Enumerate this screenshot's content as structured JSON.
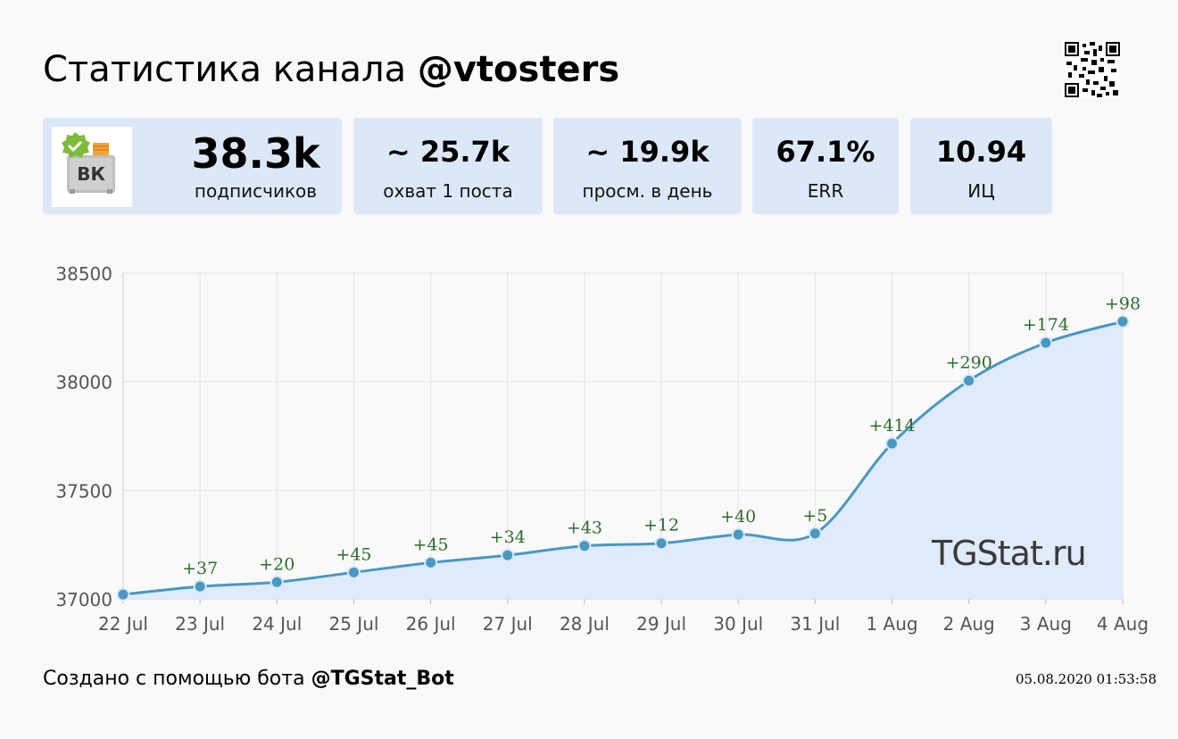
{
  "header": {
    "title_prefix": "Статистика канала",
    "channel": "@vtosters"
  },
  "stats": {
    "subscribers": {
      "value": "38.3k",
      "label": "подписчиков"
    },
    "reach": {
      "value": "~ 25.7k",
      "label": "охват 1 поста"
    },
    "daily_views": {
      "value": "~ 19.9k",
      "label": "просм. в день"
    },
    "err": {
      "value": "67.1%",
      "label": "ERR"
    },
    "ci": {
      "value": "10.94",
      "label": "ИЦ"
    }
  },
  "avatar": {
    "text": "ВК"
  },
  "watermark": "TGStat.ru",
  "footer": {
    "text": "Создано с помощью бота",
    "bot": "@TGStat_Bot",
    "timestamp": "05.08.2020 01:53:58"
  },
  "colors": {
    "card_bg": "#dce8f8",
    "line": "#4a97c2",
    "area": "#dfeafa",
    "delta_text": "#2e6b2e",
    "grid": "#e2e2e2"
  },
  "chart_data": {
    "type": "area",
    "categories": [
      "22 Jul",
      "23 Jul",
      "24 Jul",
      "25 Jul",
      "26 Jul",
      "27 Jul",
      "28 Jul",
      "29 Jul",
      "30 Jul",
      "31 Jul",
      "1 Aug",
      "2 Aug",
      "3 Aug",
      "4 Aug"
    ],
    "values": [
      37020,
      37057,
      37077,
      37122,
      37167,
      37201,
      37244,
      37256,
      37296,
      37301,
      37715,
      38005,
      38179,
      38277
    ],
    "deltas": [
      "",
      "+37",
      "+20",
      "+45",
      "+45",
      "+34",
      "+43",
      "+12",
      "+40",
      "+5",
      "+414",
      "+290",
      "+174",
      "+98"
    ],
    "yticks": [
      37000,
      37500,
      38000,
      38500
    ],
    "ylim": [
      37000,
      38500
    ],
    "grid": true
  }
}
